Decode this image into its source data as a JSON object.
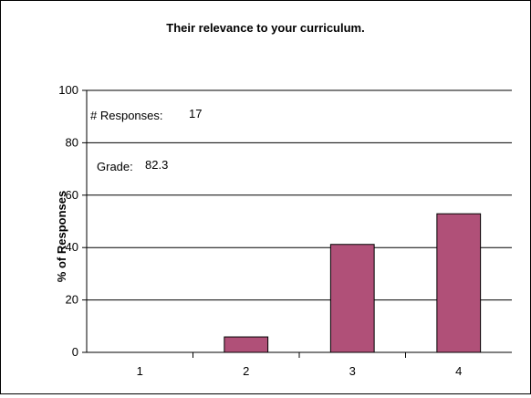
{
  "colors": {
    "bar_fill": "#B05078",
    "bar_stroke": "#000000",
    "gridline": "#000000",
    "background": "#ffffff"
  },
  "annotations": {
    "responses_label": "# Responses:",
    "responses_value": "17",
    "grade_label": "Grade:",
    "grade_value": "82.3"
  },
  "chart_data": {
    "type": "bar",
    "title": "Their relevance to your curriculum.",
    "xlabel": "",
    "ylabel": "% of Responses",
    "categories": [
      "1",
      "2",
      "3",
      "4"
    ],
    "values": [
      0,
      5.9,
      41.2,
      52.9
    ],
    "ylim": [
      0,
      100
    ],
    "yticks": [
      0,
      20,
      40,
      60,
      80,
      100
    ],
    "grid": true,
    "legend": "none"
  }
}
